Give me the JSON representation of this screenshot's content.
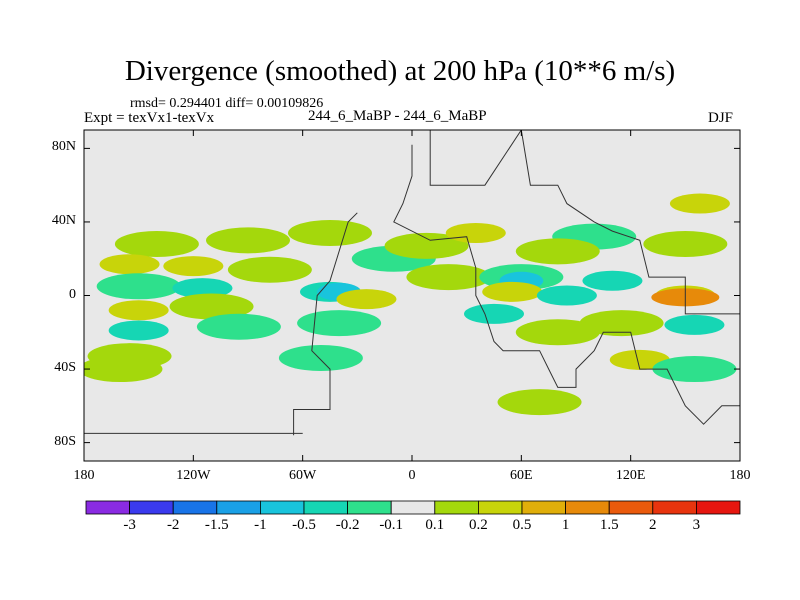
{
  "chart_data": {
    "type": "contour-map",
    "title": "Divergence (smoothed) at 200 hPa (10**6 m/s)",
    "stats_label": "rmsd= 0.294401 diff= 0.00109826",
    "experiment_label": "Expt = texVx1-texVx",
    "experiments": "244_6_MaBP - 244_6_MaBP",
    "season": "DJF",
    "x_ticks": [
      "180",
      "120W",
      "60W",
      "0",
      "60E",
      "120E",
      "180"
    ],
    "x_tick_values": [
      -180,
      -120,
      -60,
      0,
      60,
      120,
      180
    ],
    "y_ticks": [
      "80N",
      "40N",
      "0",
      "40S",
      "80S"
    ],
    "y_tick_values": [
      80,
      40,
      0,
      -40,
      -80
    ],
    "xlim": [
      -180,
      180
    ],
    "ylim": [
      -90,
      90
    ],
    "colorbar": {
      "labels": [
        "-3",
        "-2",
        "-1.5",
        "-1",
        "-0.5",
        "-0.2",
        "-0.1",
        "0.1",
        "0.2",
        "0.5",
        "1",
        "1.5",
        "2",
        "3"
      ],
      "colors": [
        "#8a2be2",
        "#3a3aee",
        "#1874e8",
        "#1aa0e6",
        "#19c4dc",
        "#16d6b4",
        "#2ee08c",
        "#e8e8e8",
        "#a4d80c",
        "#c8d40a",
        "#e0ae0a",
        "#e78a0a",
        "#ea5a0c",
        "#e8340e",
        "#e6160f"
      ]
    },
    "field": [
      {
        "lon": -140,
        "lat": 28,
        "level": "0.2"
      },
      {
        "lon": -90,
        "lat": 30,
        "level": "0.2"
      },
      {
        "lon": -45,
        "lat": 34,
        "level": "0.2"
      },
      {
        "lon": -155,
        "lat": 17,
        "level": "0.5"
      },
      {
        "lon": -120,
        "lat": 16,
        "level": "0.5"
      },
      {
        "lon": -78,
        "lat": 14,
        "level": "0.2"
      },
      {
        "lon": -150,
        "lat": 5,
        "level": "-0.2"
      },
      {
        "lon": -115,
        "lat": 4,
        "level": "-0.5"
      },
      {
        "lon": -45,
        "lat": 2,
        "level": "-0.5"
      },
      {
        "lon": -40,
        "lat": 2,
        "level": "-1"
      },
      {
        "lon": -25,
        "lat": -2,
        "level": "0.5"
      },
      {
        "lon": -150,
        "lat": -8,
        "level": "0.5"
      },
      {
        "lon": -110,
        "lat": -6,
        "level": "0.2"
      },
      {
        "lon": -150,
        "lat": -19,
        "level": "-0.5"
      },
      {
        "lon": -95,
        "lat": -17,
        "level": "-0.2"
      },
      {
        "lon": -40,
        "lat": -15,
        "level": "-0.2"
      },
      {
        "lon": -155,
        "lat": -33,
        "level": "0.2"
      },
      {
        "lon": -50,
        "lat": -34,
        "level": "-0.2"
      },
      {
        "lon": -10,
        "lat": 20,
        "level": "-0.2"
      },
      {
        "lon": 8,
        "lat": 27,
        "level": "0.2"
      },
      {
        "lon": 35,
        "lat": 34,
        "level": "0.5"
      },
      {
        "lon": 20,
        "lat": 10,
        "level": "0.2"
      },
      {
        "lon": 60,
        "lat": 10,
        "level": "-0.2"
      },
      {
        "lon": 60,
        "lat": 8,
        "level": "-1"
      },
      {
        "lon": 55,
        "lat": 2,
        "level": "0.5"
      },
      {
        "lon": 45,
        "lat": -10,
        "level": "-0.5"
      },
      {
        "lon": 85,
        "lat": 0,
        "level": "-0.5"
      },
      {
        "lon": 110,
        "lat": 8,
        "level": "-0.5"
      },
      {
        "lon": 100,
        "lat": 32,
        "level": "-0.2"
      },
      {
        "lon": 80,
        "lat": 24,
        "level": "0.2"
      },
      {
        "lon": 150,
        "lat": 28,
        "level": "0.2"
      },
      {
        "lon": 158,
        "lat": 50,
        "level": "0.5"
      },
      {
        "lon": 150,
        "lat": 0,
        "level": "0.5"
      },
      {
        "lon": 150,
        "lat": -1,
        "level": "1.5"
      },
      {
        "lon": 155,
        "lat": -16,
        "level": "-0.5"
      },
      {
        "lon": 115,
        "lat": -15,
        "level": "0.2"
      },
      {
        "lon": 80,
        "lat": -20,
        "level": "0.2"
      },
      {
        "lon": 125,
        "lat": -35,
        "level": "0.5"
      },
      {
        "lon": 155,
        "lat": -40,
        "level": "-0.2"
      },
      {
        "lon": 70,
        "lat": -58,
        "level": "0.2"
      },
      {
        "lon": -160,
        "lat": -40,
        "level": "0.2"
      }
    ]
  }
}
